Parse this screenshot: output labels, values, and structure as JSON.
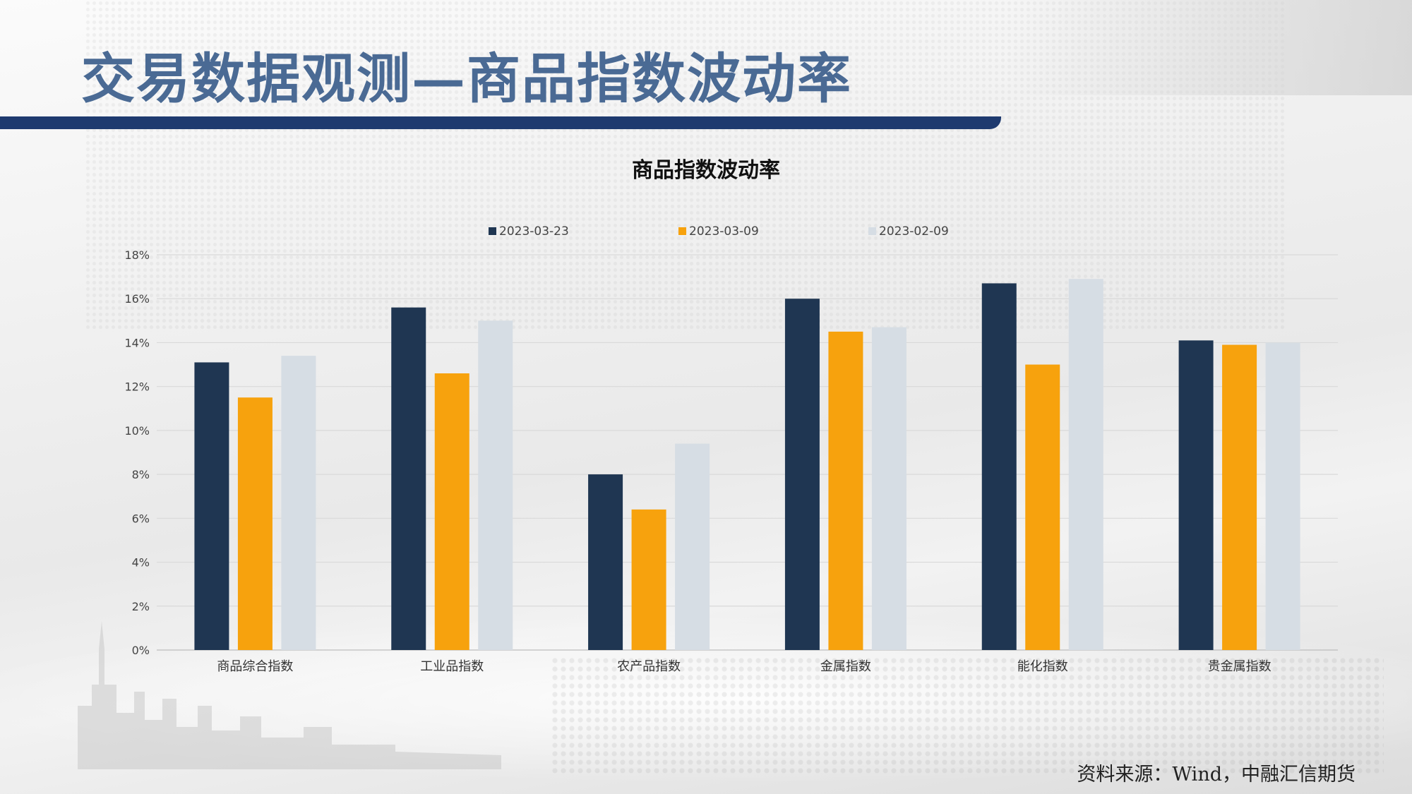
{
  "slide": {
    "title": "交易数据观测—商品指数波动率",
    "source": "资料来源：Wind，中融汇信期货",
    "colors": {
      "title": "#4a6a94",
      "bar_band": "#1e3a6f"
    }
  },
  "chart_data": {
    "type": "bar",
    "title": "商品指数波动率",
    "xlabel": "",
    "ylabel": "",
    "ylim": [
      0,
      18
    ],
    "y_ticks": [
      "0%",
      "2%",
      "4%",
      "6%",
      "8%",
      "10%",
      "12%",
      "14%",
      "16%",
      "18%"
    ],
    "grid": true,
    "legend_position": "top",
    "categories": [
      "商品综合指数",
      "工业品指数",
      "农产品指数",
      "金属指数",
      "能化指数",
      "贵金属指数"
    ],
    "series": [
      {
        "name": "2023-03-23",
        "color": "#1f3652",
        "values": [
          13.1,
          15.6,
          8.0,
          16.0,
          16.7,
          14.1
        ]
      },
      {
        "name": "2023-03-09",
        "color": "#f7a20d",
        "values": [
          11.5,
          12.6,
          6.4,
          14.5,
          13.0,
          13.9
        ]
      },
      {
        "name": "2023-02-09",
        "color": "#d6dde4",
        "values": [
          13.4,
          15.0,
          9.4,
          14.7,
          16.9,
          14.0
        ]
      }
    ]
  }
}
